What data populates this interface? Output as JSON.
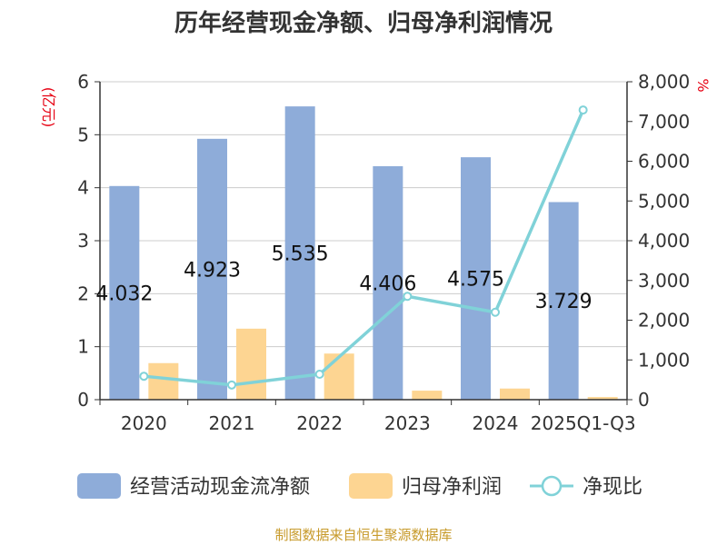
{
  "chart_data": {
    "type": "bar+line",
    "title": "历年经营现金净额、归母净利润情况",
    "categories": [
      "2020",
      "2021",
      "2022",
      "2023",
      "2024",
      "2025Q1-Q3"
    ],
    "series": [
      {
        "name": "经营活动现金流净额",
        "type": "bar",
        "axis": "left",
        "color": "#8eacd9",
        "values": [
          4.032,
          4.923,
          5.535,
          4.406,
          4.575,
          3.729
        ],
        "labels": [
          "4.032",
          "4.923",
          "5.535",
          "4.406",
          "4.575",
          "3.729"
        ]
      },
      {
        "name": "归母净利润",
        "type": "bar",
        "axis": "left",
        "color": "#fdd592",
        "values": [
          0.69,
          1.34,
          0.87,
          0.17,
          0.21,
          0.05
        ]
      },
      {
        "name": "净现比",
        "type": "line",
        "axis": "right",
        "color": "#80d2d8",
        "values": [
          590,
          370,
          640,
          2600,
          2200,
          7290
        ]
      }
    ],
    "left_axis": {
      "unit": "(亿元)",
      "min": 0,
      "max": 6,
      "ticks": [
        "0",
        "1",
        "2",
        "3",
        "4",
        "5",
        "6"
      ]
    },
    "right_axis": {
      "unit": "%",
      "min": 0,
      "max": 8000,
      "ticks": [
        "0",
        "1,000",
        "2,000",
        "3,000",
        "4,000",
        "5,000",
        "6,000",
        "7,000",
        "8,000"
      ]
    },
    "legend": [
      "经营活动现金流净额",
      "归母净利润",
      "净现比"
    ],
    "legend_position": "bottom",
    "source": "制图数据来自恒生聚源数据库"
  }
}
